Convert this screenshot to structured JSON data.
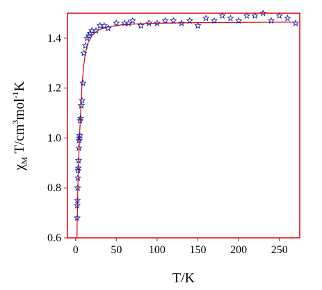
{
  "chart_data": {
    "type": "scatter",
    "title": "",
    "xlabel": "T/K",
    "ylabel": "χ_M T/cm^3 mol^-1 K",
    "xlim": [
      -10,
      275
    ],
    "ylim": [
      0.6,
      1.5
    ],
    "xticks": [
      0,
      50,
      100,
      150,
      200,
      250
    ],
    "yticks": [
      0.6,
      0.8,
      1.0,
      1.2,
      1.4
    ],
    "xtick_labels": [
      "0",
      "50",
      "100",
      "150",
      "200",
      "250"
    ],
    "ytick_labels": [
      "0.6",
      "0.8",
      "1.0",
      "1.2",
      "1.4"
    ],
    "grid": false,
    "legend": "none",
    "colors": {
      "frame": "#e00000",
      "fit_line": "#e00000",
      "markers": "#1a1aa0",
      "text": "#000000"
    },
    "series": [
      {
        "marker": "star",
        "x": [
          1.9,
          2.0,
          2.2,
          2.5,
          2.8,
          3.0,
          3.3,
          3.6,
          4.0,
          4.3,
          4.7,
          5.0,
          5.5,
          6.0,
          7.0,
          8.0,
          9.0,
          10,
          12,
          14,
          16,
          18,
          20,
          25,
          30,
          35,
          40,
          50,
          60,
          65,
          70,
          80,
          90,
          100,
          110,
          120,
          130,
          140,
          150,
          160,
          170,
          180,
          190,
          200,
          210,
          220,
          230,
          240,
          250,
          260,
          270
        ],
        "y": [
          0.68,
          0.73,
          0.75,
          0.8,
          0.84,
          0.87,
          0.88,
          0.91,
          0.96,
          0.99,
          1.0,
          1.01,
          1.07,
          1.08,
          1.13,
          1.15,
          1.22,
          1.34,
          1.37,
          1.4,
          1.41,
          1.42,
          1.43,
          1.43,
          1.45,
          1.45,
          1.44,
          1.46,
          1.46,
          1.46,
          1.47,
          1.45,
          1.46,
          1.46,
          1.47,
          1.47,
          1.46,
          1.47,
          1.45,
          1.48,
          1.47,
          1.49,
          1.48,
          1.47,
          1.49,
          1.49,
          1.5,
          1.47,
          1.49,
          1.48,
          1.46
        ]
      },
      {
        "line": "fit",
        "x": [
          1.5,
          2,
          3,
          4,
          5,
          6,
          7,
          8,
          10,
          12,
          15,
          20,
          25,
          30,
          40,
          50,
          60,
          80,
          100,
          150,
          200,
          250,
          270
        ],
        "y": [
          0.55,
          0.68,
          0.83,
          0.93,
          1.02,
          1.09,
          1.16,
          1.22,
          1.29,
          1.34,
          1.38,
          1.41,
          1.425,
          1.435,
          1.445,
          1.45,
          1.455,
          1.458,
          1.46,
          1.462,
          1.463,
          1.464,
          1.464
        ]
      }
    ]
  }
}
